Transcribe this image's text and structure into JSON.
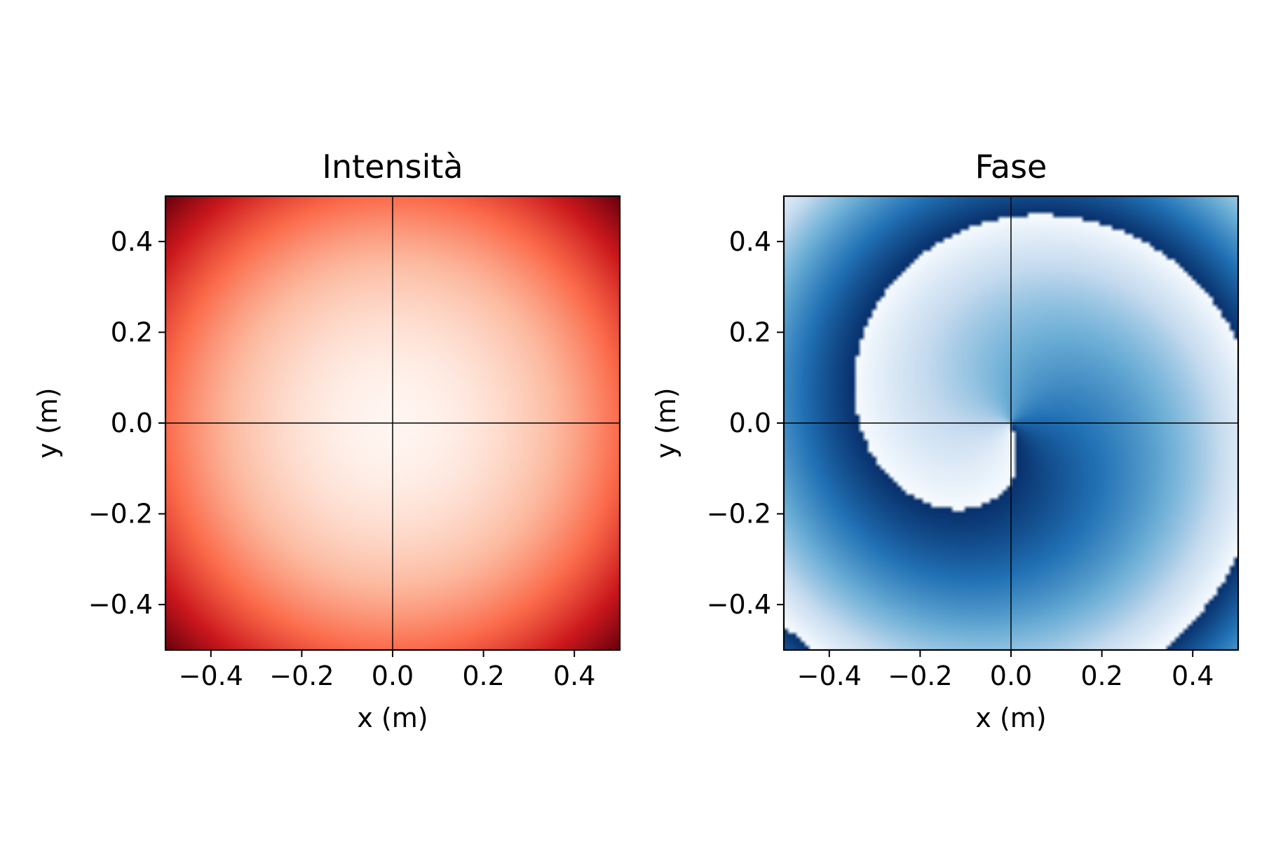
{
  "chart_data": [
    {
      "type": "heatmap",
      "title": "Intensità",
      "xlabel": "x (m)",
      "ylabel": "y (m)",
      "xlim": [
        -0.5,
        0.5
      ],
      "ylim": [
        -0.5,
        0.5
      ],
      "xticks": [
        "−0.4",
        "−0.2",
        "0.0",
        "0.2",
        "0.4"
      ],
      "yticks": [
        "0.4",
        "0.2",
        "0.0",
        "−0.2",
        "−0.4"
      ],
      "xtick_values": [
        -0.4,
        -0.2,
        0.0,
        0.2,
        0.4
      ],
      "ytick_values": [
        0.4,
        0.2,
        0.0,
        -0.2,
        -0.4
      ],
      "colormap": "Reds",
      "colormap_colors": [
        "#fff5f0",
        "#fcbba1",
        "#fb6a4a",
        "#cb181d",
        "#67000d"
      ],
      "field": "intensity increasing radially from the center (0,0), maximum at the corners",
      "crosshair_at": [
        0.0,
        0.0
      ]
    },
    {
      "type": "heatmap",
      "title": "Fase",
      "xlabel": "x (m)",
      "ylabel": "y (m)",
      "xlim": [
        -0.5,
        0.5
      ],
      "ylim": [
        -0.5,
        0.5
      ],
      "xticks": [
        "−0.4",
        "−0.2",
        "0.0",
        "0.2",
        "0.4"
      ],
      "yticks": [
        "0.4",
        "0.2",
        "0.0",
        "−0.2",
        "−0.4"
      ],
      "xtick_values": [
        -0.4,
        -0.2,
        0.0,
        0.2,
        0.4
      ],
      "ytick_values": [
        0.4,
        0.2,
        0.0,
        -0.2,
        -0.4
      ],
      "colormap": "Blues",
      "colormap_colors": [
        "#f7fbff",
        "#c6dbef",
        "#6baed6",
        "#2171b5",
        "#08306b"
      ],
      "field": "spiral phase pattern (azimuthal phase plus radial term, wrapped), centred at (0,0)",
      "crosshair_at": [
        0.0,
        0.0
      ]
    }
  ]
}
